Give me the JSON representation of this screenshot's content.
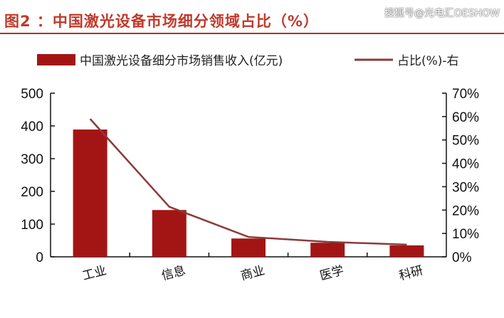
{
  "title": "图2 ：中国激光设备市场细分领域占比（%）",
  "watermark": "搜狐号@光电汇OESHOW",
  "colors": {
    "bar": "#a31515",
    "line": "#8b3a3a",
    "title": "#c0392b"
  },
  "chart_data": {
    "type": "bar+line",
    "title": "中国激光设备市场细分领域占比（%）",
    "categories": [
      "工业",
      "信息",
      "商业",
      "医学",
      "科研"
    ],
    "series": [
      {
        "name": "中国激光设备细分市场销售收入(亿元)",
        "type": "bar",
        "axis": "left",
        "values": [
          389,
          143,
          56,
          43,
          35
        ]
      },
      {
        "name": "占比(%)-右",
        "type": "line",
        "axis": "right",
        "values": [
          59,
          21.4,
          8.5,
          6.4,
          5.2
        ]
      }
    ],
    "left_axis": {
      "ylim": [
        0,
        500
      ],
      "ticks": [
        "0",
        "100",
        "200",
        "300",
        "400",
        "500"
      ]
    },
    "right_axis": {
      "ylim": [
        0,
        70
      ],
      "ticks": [
        "0%",
        "10%",
        "20%",
        "30%",
        "40%",
        "50%",
        "60%",
        "70%"
      ]
    },
    "legend": "top"
  }
}
